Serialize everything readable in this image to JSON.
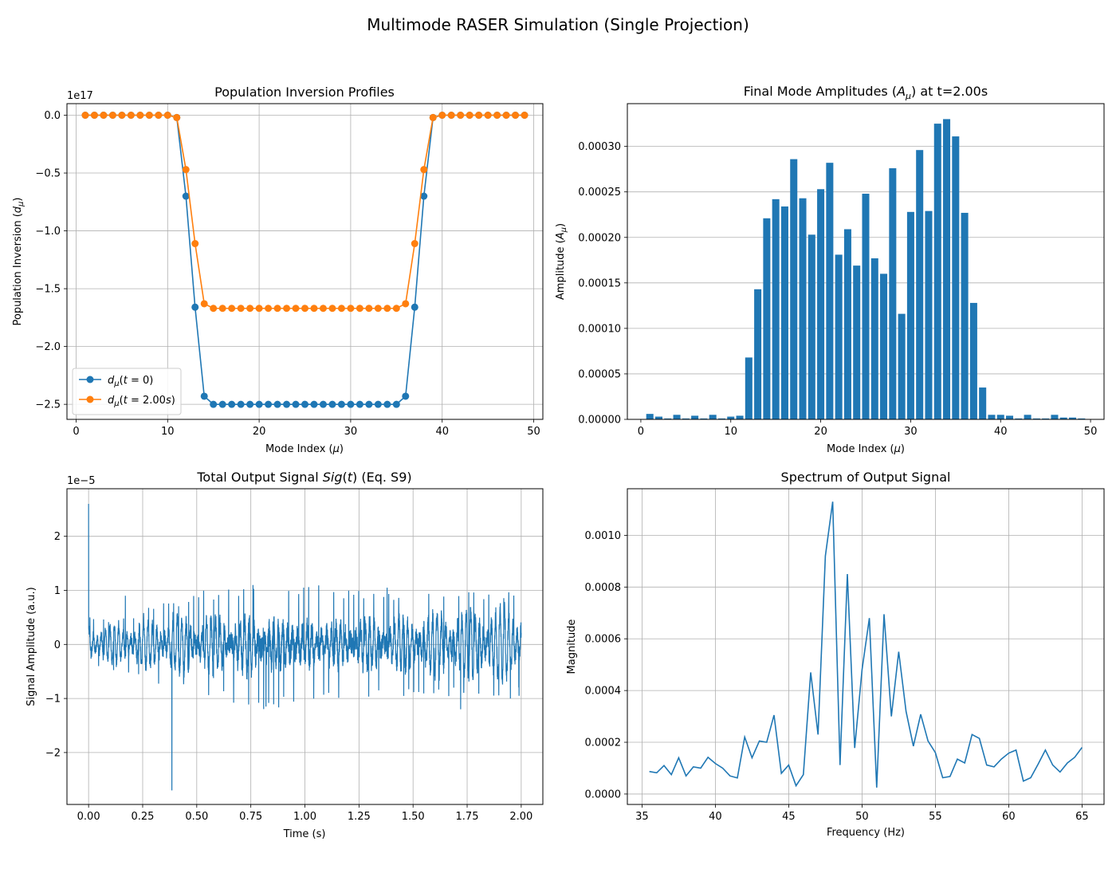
{
  "figure": {
    "suptitle": "Multimode RASER Simulation (Single Projection)",
    "series_color": "#1f77b4",
    "series_color_2": "#ff7f0e"
  },
  "chart_data": [
    {
      "type": "line",
      "title": "Population Inversion Profiles",
      "xlabel": "Mode Index (μ)",
      "ylabel": "Population Inversion (dμ)",
      "offset_label": "1e17",
      "xlim": [
        -1,
        51
      ],
      "ylim": [
        -2.63,
        0.1
      ],
      "x_ticks": [
        0,
        10,
        20,
        30,
        40,
        50
      ],
      "x_tick_labels": [
        "0",
        "10",
        "20",
        "30",
        "40",
        "50"
      ],
      "y_ticks": [
        0,
        -0.5,
        -1.0,
        -1.5,
        -2.0,
        -2.5
      ],
      "y_tick_labels": [
        "0.0",
        "−0.5",
        "−1.0",
        "−1.5",
        "−2.0",
        "−2.5"
      ],
      "grid": true,
      "legend": "lower-left",
      "x": [
        1,
        2,
        3,
        4,
        5,
        6,
        7,
        8,
        9,
        10,
        11,
        12,
        13,
        14,
        15,
        16,
        17,
        18,
        19,
        20,
        21,
        22,
        23,
        24,
        25,
        26,
        27,
        28,
        29,
        30,
        31,
        32,
        33,
        34,
        35,
        36,
        37,
        38,
        39,
        40,
        41,
        42,
        43,
        44,
        45,
        46,
        47,
        48,
        49
      ],
      "series": [
        {
          "name": "dμ(t = 0)",
          "values": [
            0,
            0,
            0,
            0,
            0,
            0,
            0,
            0,
            0,
            0,
            -0.02,
            -0.7,
            -1.66,
            -2.43,
            -2.5,
            -2.5,
            -2.5,
            -2.5,
            -2.5,
            -2.5,
            -2.5,
            -2.5,
            -2.5,
            -2.5,
            -2.5,
            -2.5,
            -2.5,
            -2.5,
            -2.5,
            -2.5,
            -2.5,
            -2.5,
            -2.5,
            -2.5,
            -2.5,
            -2.43,
            -1.66,
            -0.7,
            -0.02,
            0,
            0,
            0,
            0,
            0,
            0,
            0,
            0,
            0,
            0
          ]
        },
        {
          "name": "dμ(t = 2.00s)",
          "values": [
            0,
            0,
            0,
            0,
            0,
            0,
            0,
            0,
            0,
            0,
            -0.02,
            -0.47,
            -1.11,
            -1.63,
            -1.67,
            -1.67,
            -1.67,
            -1.67,
            -1.67,
            -1.67,
            -1.67,
            -1.67,
            -1.67,
            -1.67,
            -1.67,
            -1.67,
            -1.67,
            -1.67,
            -1.67,
            -1.67,
            -1.67,
            -1.67,
            -1.67,
            -1.67,
            -1.67,
            -1.63,
            -1.11,
            -0.47,
            -0.02,
            0,
            0,
            0,
            0,
            0,
            0,
            0,
            0,
            0,
            0
          ]
        }
      ]
    },
    {
      "type": "bar",
      "title": "Final Mode Amplitudes (Aμ) at t=2.00s",
      "xlabel": "Mode Index (μ)",
      "ylabel": "Amplitude (Aμ)",
      "xlim": [
        -1.5,
        51.5
      ],
      "ylim": [
        0,
        0.000347
      ],
      "x_ticks": [
        0,
        10,
        20,
        30,
        40,
        50
      ],
      "x_tick_labels": [
        "0",
        "10",
        "20",
        "30",
        "40",
        "50"
      ],
      "y_ticks": [
        0,
        5e-05,
        0.0001,
        0.00015,
        0.0002,
        0.00025,
        0.0003
      ],
      "y_tick_labels": [
        "0.00000",
        "0.00005",
        "0.00010",
        "0.00015",
        "0.00020",
        "0.00025",
        "0.00030"
      ],
      "grid": "y",
      "categories": [
        1,
        2,
        3,
        4,
        5,
        6,
        7,
        8,
        9,
        10,
        11,
        12,
        13,
        14,
        15,
        16,
        17,
        18,
        19,
        20,
        21,
        22,
        23,
        24,
        25,
        26,
        27,
        28,
        29,
        30,
        31,
        32,
        33,
        34,
        35,
        36,
        37,
        38,
        39,
        40,
        41,
        42,
        43,
        44,
        45,
        46,
        47,
        48,
        49
      ],
      "values": [
        6e-06,
        3e-06,
        1e-06,
        5e-06,
        1e-06,
        4e-06,
        1e-06,
        5e-06,
        1e-06,
        3e-06,
        4e-06,
        6.8e-05,
        0.000143,
        0.000221,
        0.000242,
        0.000234,
        0.000286,
        0.000243,
        0.000203,
        0.000253,
        0.000282,
        0.000181,
        0.000209,
        0.000169,
        0.000248,
        0.000177,
        0.00016,
        0.000276,
        0.000116,
        0.000228,
        0.000296,
        0.000229,
        0.000325,
        0.00033,
        0.000311,
        0.000227,
        0.000128,
        3.5e-05,
        5e-06,
        5e-06,
        4e-06,
        1e-06,
        5e-06,
        1e-06,
        1e-06,
        5e-06,
        2e-06,
        2e-06,
        1e-06
      ]
    },
    {
      "type": "line",
      "title": "Total Output Signal Sig(t) (Eq. S9)",
      "xlabel": "Time (s)",
      "ylabel": "Signal Amplitude (a.u.)",
      "offset_label": "1e−5",
      "xlim": [
        -0.1,
        2.1
      ],
      "ylim": [
        -2.96,
        2.88
      ],
      "x_ticks": [
        0,
        0.25,
        0.5,
        0.75,
        1.0,
        1.25,
        1.5,
        1.75,
        2.0
      ],
      "x_tick_labels": [
        "0.00",
        "0.25",
        "0.50",
        "0.75",
        "1.00",
        "1.25",
        "1.50",
        "1.75",
        "2.00"
      ],
      "y_ticks": [
        -2,
        -1,
        0,
        1,
        2
      ],
      "y_tick_labels": [
        "−2",
        "−1",
        "0",
        "1",
        "2"
      ],
      "grid": true,
      "envelope_knots": [
        [
          0.0,
          0.45
        ],
        [
          0.05,
          0.35
        ],
        [
          0.1,
          0.4
        ],
        [
          0.2,
          0.45
        ],
        [
          0.3,
          0.55
        ],
        [
          0.4,
          0.65
        ],
        [
          0.5,
          0.75
        ],
        [
          0.6,
          0.8
        ],
        [
          0.7,
          0.85
        ],
        [
          0.8,
          0.95
        ],
        [
          0.9,
          0.9
        ],
        [
          1.0,
          0.85
        ],
        [
          1.1,
          0.85
        ],
        [
          1.2,
          0.8
        ],
        [
          1.3,
          0.8
        ],
        [
          1.4,
          0.75
        ],
        [
          1.5,
          0.75
        ],
        [
          1.6,
          0.75
        ],
        [
          1.7,
          0.75
        ],
        [
          1.8,
          0.75
        ],
        [
          1.9,
          0.75
        ],
        [
          2.0,
          0.75
        ]
      ],
      "spikes": [
        [
          0.0,
          2.6
        ],
        [
          0.006,
          0.5
        ],
        [
          0.017,
          -0.1
        ],
        [
          0.17,
          0.9
        ],
        [
          0.385,
          -2.7
        ],
        [
          0.39,
          0.6
        ],
        [
          0.76,
          1.1
        ],
        [
          0.82,
          -1.15
        ],
        [
          1.38,
          1.05
        ],
        [
          1.72,
          -1.2
        ],
        [
          1.95,
          -1.0
        ],
        [
          1.99,
          -0.95
        ]
      ]
    },
    {
      "type": "line",
      "title": "Spectrum of Output Signal",
      "xlabel": "Frequency (Hz)",
      "ylabel": "Magnitude",
      "xlim": [
        34.0,
        66.5
      ],
      "ylim": [
        -4.03e-05,
        0.00118
      ],
      "x_ticks": [
        35,
        40,
        45,
        50,
        55,
        60,
        65
      ],
      "x_tick_labels": [
        "35",
        "40",
        "45",
        "50",
        "55",
        "60",
        "65"
      ],
      "y_ticks": [
        0,
        0.0002,
        0.0004,
        0.0006,
        0.0008,
        0.001
      ],
      "y_tick_labels": [
        "0.0000",
        "0.0002",
        "0.0004",
        "0.0006",
        "0.0008",
        "0.0010"
      ],
      "grid": true,
      "x": [
        35.5,
        36.0,
        36.5,
        37.0,
        37.5,
        38.0,
        38.5,
        39.0,
        39.5,
        40.0,
        40.5,
        41.0,
        41.5,
        42.0,
        42.5,
        43.0,
        43.5,
        44.0,
        44.5,
        45.0,
        45.5,
        46.0,
        46.5,
        47.0,
        47.5,
        48.0,
        48.5,
        49.0,
        49.5,
        50.0,
        50.5,
        51.0,
        51.5,
        52.0,
        52.5,
        53.0,
        53.5,
        54.0,
        54.5,
        55.0,
        55.5,
        56.0,
        56.5,
        57.0,
        57.5,
        58.0,
        58.5,
        59.0,
        59.5,
        60.0,
        60.5,
        61.0,
        61.5,
        62.0,
        62.5,
        63.0,
        63.5,
        64.0,
        64.5,
        65.0
      ],
      "values": [
        8.7e-05,
        8.2e-05,
        0.00011,
        7.5e-05,
        0.00014,
        7e-05,
        0.000105,
        0.0001,
        0.000142,
        0.000118,
        0.0001,
        7e-05,
        6.2e-05,
        0.00022,
        0.00014,
        0.000205,
        0.0002,
        0.000305,
        8e-05,
        0.000112,
        3.2e-05,
        7.5e-05,
        0.00047,
        0.00023,
        0.00092,
        0.00113,
        0.000112,
        0.00085,
        0.000178,
        0.00048,
        0.00068,
        2.5e-05,
        0.000695,
        0.0003,
        0.00055,
        0.00032,
        0.000185,
        0.000308,
        0.000205,
        0.00016,
        6.3e-05,
        6.8e-05,
        0.000135,
        0.00012,
        0.00023,
        0.000215,
        0.000112,
        0.000105,
        0.000135,
        0.000158,
        0.00017,
        5e-05,
        6.3e-05,
        0.000115,
        0.00017,
        0.000112,
        8.5e-05,
        0.00012,
        0.000142,
        0.00018
      ]
    }
  ]
}
